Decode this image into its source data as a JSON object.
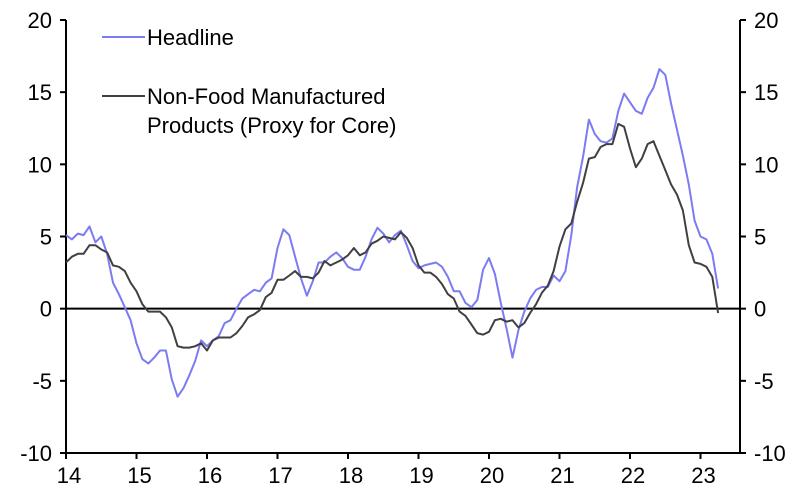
{
  "chart_data": {
    "type": "line",
    "title": "",
    "xlabel": "",
    "ylabel": "",
    "ylim": [
      -10,
      20
    ],
    "y_ticks": [
      "20",
      "15",
      "10",
      "5",
      "0",
      "-5",
      "-10"
    ],
    "y_tick_values": [
      20,
      15,
      10,
      5,
      0,
      -5,
      -10
    ],
    "x_ticks": [
      "14",
      "15",
      "16",
      "17",
      "18",
      "19",
      "20",
      "21",
      "22",
      "23"
    ],
    "x_start": "2014-01",
    "frequency": "monthly",
    "grid": false,
    "legend_position": "top-left",
    "series": [
      {
        "name": "Headline",
        "color": "#7b7bf2",
        "values": [
          5.1,
          4.8,
          5.2,
          5.1,
          5.7,
          4.6,
          5.0,
          3.8,
          1.8,
          1.0,
          0.1,
          -0.8,
          -2.4,
          -3.5,
          -3.8,
          -3.4,
          -2.9,
          -2.9,
          -4.9,
          -6.1,
          -5.5,
          -4.6,
          -3.6,
          -2.2,
          -2.6,
          -2.2,
          -1.9,
          -1.0,
          -0.8,
          0.0,
          0.7,
          1.0,
          1.3,
          1.2,
          1.8,
          2.1,
          4.2,
          5.5,
          5.1,
          3.6,
          2.1,
          0.9,
          1.9,
          3.2,
          3.2,
          3.6,
          3.9,
          3.5,
          2.9,
          2.7,
          2.7,
          3.6,
          4.8,
          5.6,
          5.2,
          4.6,
          5.1,
          5.4,
          4.4,
          3.3,
          2.8,
          3.0,
          3.1,
          3.2,
          2.9,
          2.2,
          1.2,
          1.2,
          0.4,
          0.1,
          0.6,
          2.7,
          3.5,
          2.4,
          0.4,
          -1.4,
          -3.4,
          -1.5,
          -0.2,
          0.7,
          1.3,
          1.5,
          1.5,
          2.3,
          1.9,
          2.6,
          5.1,
          8.4,
          10.5,
          13.1,
          12.1,
          11.6,
          11.5,
          11.8,
          13.7,
          14.9,
          14.3,
          13.7,
          13.5,
          14.6,
          15.3,
          16.6,
          16.2,
          14.2,
          12.4,
          10.6,
          8.6,
          6.1,
          5.0,
          4.8,
          3.8,
          1.4
        ]
      },
      {
        "name": "Non-Food Manufactured Products (Proxy for Core)",
        "color": "#404040",
        "values": [
          3.2,
          3.6,
          3.8,
          3.8,
          4.4,
          4.4,
          4.1,
          3.9,
          3.0,
          2.9,
          2.6,
          1.8,
          1.2,
          0.3,
          -0.2,
          -0.2,
          -0.2,
          -0.6,
          -1.3,
          -2.6,
          -2.7,
          -2.7,
          -2.6,
          -2.4,
          -2.9,
          -2.2,
          -2.0,
          -2.0,
          -2.0,
          -1.7,
          -1.2,
          -0.6,
          -0.4,
          -0.1,
          0.8,
          1.1,
          2.0,
          2.0,
          2.3,
          2.6,
          2.2,
          2.2,
          2.1,
          2.5,
          3.3,
          3.0,
          3.2,
          3.4,
          3.7,
          4.2,
          3.7,
          3.9,
          4.5,
          4.7,
          5.0,
          4.9,
          4.8,
          5.3,
          4.9,
          4.2,
          3.0,
          2.5,
          2.5,
          2.2,
          1.7,
          1.0,
          0.7,
          -0.2,
          -0.5,
          -1.1,
          -1.7,
          -1.8,
          -1.6,
          -0.8,
          -0.7,
          -0.9,
          -0.8,
          -1.3,
          -1.0,
          -0.3,
          0.3,
          1.1,
          1.6,
          2.6,
          4.3,
          5.5,
          5.9,
          7.4,
          8.7,
          10.4,
          10.5,
          11.2,
          11.4,
          11.4,
          12.8,
          12.6,
          11.1,
          9.8,
          10.4,
          11.4,
          11.6,
          10.6,
          9.6,
          8.6,
          7.9,
          6.8,
          4.4,
          3.2,
          3.1,
          2.9,
          2.2,
          -0.3
        ]
      }
    ],
    "reference_line": 0
  }
}
